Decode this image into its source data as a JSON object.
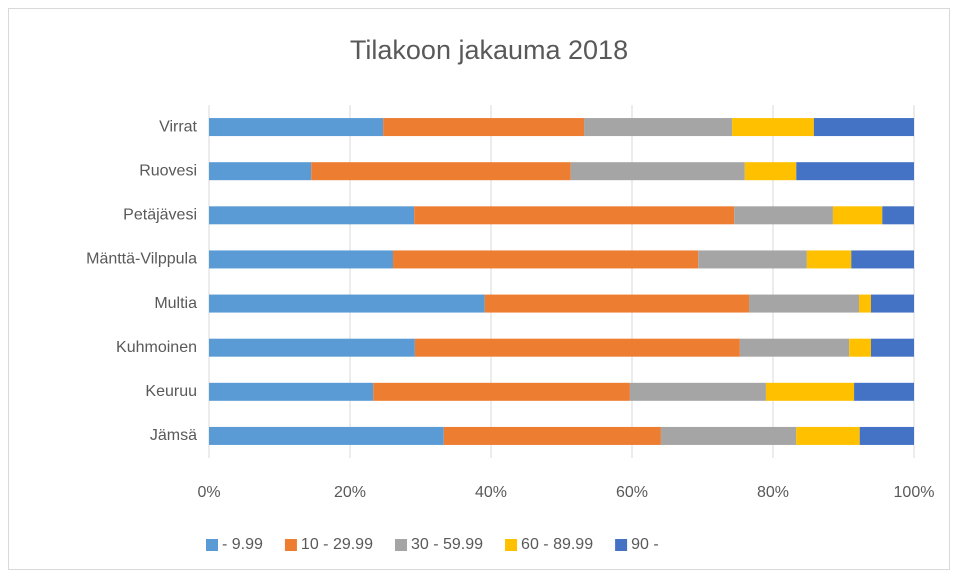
{
  "chart_data": {
    "type": "bar",
    "orientation": "horizontal",
    "stacked": true,
    "title": "Tilakoon jakauma 2018",
    "categories": [
      "Virrat",
      "Ruovesi",
      "Petäjävesi",
      "Mänttä-Vilppula",
      "Multia",
      "Kuhmoinen",
      "Keuruu",
      "Jämsä"
    ],
    "series": [
      {
        "name": "- 9.99",
        "color": "#5b9bd5",
        "values": [
          24.7,
          14.5,
          29.1,
          26.1,
          39.1,
          29.2,
          23.3,
          33.3
        ]
      },
      {
        "name": "10 - 29.99",
        "color": "#ed7d31",
        "values": [
          28.5,
          36.8,
          45.4,
          43.3,
          37.5,
          46.1,
          36.4,
          30.8
        ]
      },
      {
        "name": "30 - 59.99",
        "color": "#a5a5a5",
        "values": [
          21.0,
          24.7,
          14.0,
          15.4,
          15.6,
          15.5,
          19.3,
          19.2
        ]
      },
      {
        "name": "60 - 89.99",
        "color": "#ffc000",
        "values": [
          11.6,
          7.3,
          7.0,
          6.3,
          1.7,
          3.1,
          12.5,
          9.0
        ]
      },
      {
        "name": "90 -",
        "color": "#4472c4",
        "values": [
          14.2,
          16.7,
          4.5,
          8.9,
          6.1,
          6.1,
          8.5,
          7.7
        ]
      }
    ],
    "xlim": [
      0,
      100
    ],
    "xticks": [
      {
        "value": 0,
        "label": "0%"
      },
      {
        "value": 20,
        "label": "20%"
      },
      {
        "value": 40,
        "label": "40%"
      },
      {
        "value": 60,
        "label": "60%"
      },
      {
        "value": 80,
        "label": "80%"
      },
      {
        "value": 100,
        "label": "100%"
      }
    ],
    "grid": true,
    "legend": "bottom"
  }
}
